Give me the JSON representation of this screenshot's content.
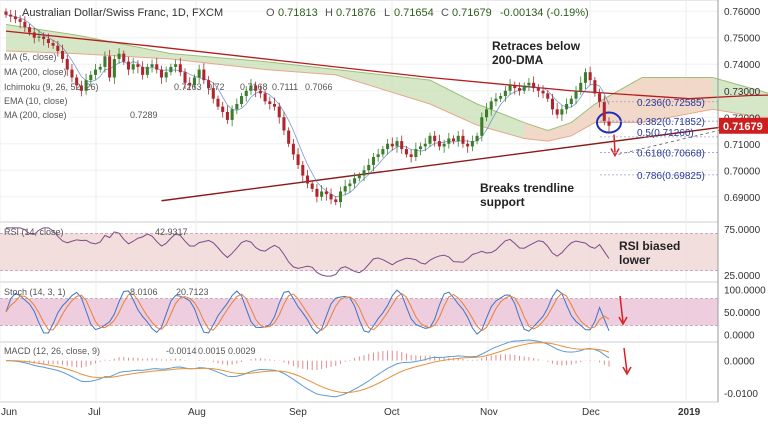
{
  "header": {
    "symbol": "Australian Dollar/Swiss Franc, 1D, FXCM",
    "ohlc": {
      "o_label": "O",
      "o": "0.71813",
      "h_label": "H",
      "h": "0.71876",
      "l_label": "L",
      "l": "0.71654",
      "c_label": "C",
      "c": "0.71679",
      "chg": "-0.00134 (-0.19%)"
    }
  },
  "colors": {
    "up": "#3a7d2c",
    "down": "#b0252b",
    "cloud_green": "#c8dfb4",
    "cloud_red": "#f7d5c8",
    "ma200": "#b71c1c",
    "trend": "#8b1a1a",
    "rsi_band": "#f2dada",
    "stoch_band": "#ecc8da",
    "rsi": "#7e4a8a",
    "stoch_k": "#3f74c4",
    "stoch_d": "#e8813a",
    "macd": "#5b9bd5",
    "signal": "#e8913a",
    "hist": "#e48b8b",
    "circle": "#1f2fb8",
    "arrow": "#d62222",
    "price_tag": "#cc1f1f"
  },
  "legends": {
    "ma5": "MA (5, close)",
    "ma200a": "MA (200, close)",
    "ichimoku": "Ichimoku (9, 26, 52, 26)",
    "ich_vals": [
      "0.7263",
      "0.72",
      "0.7168",
      "0.7111",
      "0.7066"
    ],
    "ema": "EMA (10, close)",
    "ma200b": "MA (200, close)",
    "ma200b_val": "0.7289",
    "rsi": "RSI (14, close)",
    "rsi_val": "42.9317",
    "stoch": "Stoch (14, 3, 1)",
    "stoch_k": "8.0106",
    "stoch_d": "20.7123",
    "macd": "MACD (12, 26, close, 9)",
    "macd_vals": [
      "-0.0014",
      "0.0015",
      "0.0029"
    ]
  },
  "annotations": {
    "retrace": [
      "Retraces below",
      "200-DMA"
    ],
    "breaks": [
      "Breaks trendline",
      "support"
    ],
    "rsi_bias": [
      "RSI biased",
      "lower"
    ]
  },
  "chart_data": {
    "type": "candlestick",
    "price_axis": {
      "ticks": [
        "0.76000",
        "0.75000",
        "0.74000",
        "0.73000",
        "0.72000",
        "0.71000",
        "0.70000",
        "0.69000"
      ],
      "ylim": [
        0.6835,
        0.7616
      ]
    },
    "current_price": "0.71679",
    "x_labels": [
      "Jun",
      "Jul",
      "Aug",
      "Sep",
      "Oct",
      "Nov",
      "Dec",
      "2019"
    ],
    "fib_levels": [
      {
        "label": "0.236(0.72585)",
        "value": 0.72585
      },
      {
        "label": "0.382(0.71852)",
        "value": 0.71852
      },
      {
        "label": "0.5(0.71260)",
        "value": 0.7126
      },
      {
        "label": "0.618(0.70668)",
        "value": 0.70668
      },
      {
        "label": "0.786(0.69825)",
        "value": 0.69825
      }
    ],
    "ma200": [
      [
        0,
        0.7525
      ],
      [
        30,
        0.747
      ],
      [
        60,
        0.741
      ],
      [
        90,
        0.735
      ],
      [
        120,
        0.73
      ],
      [
        145,
        0.727
      ],
      [
        158,
        0.7282
      ],
      [
        165,
        0.7285
      ],
      [
        170,
        0.7289
      ]
    ],
    "trendline": [
      [
        33,
        0.6885
      ],
      [
        155,
        0.717
      ]
    ],
    "trendline_ext": [
      [
        130,
        0.706
      ],
      [
        163,
        0.72
      ]
    ],
    "cloud_a": [
      [
        0,
        0.755
      ],
      [
        15,
        0.751
      ],
      [
        35,
        0.744
      ],
      [
        55,
        0.741
      ],
      [
        70,
        0.738
      ],
      [
        90,
        0.734
      ],
      [
        100,
        0.725
      ],
      [
        110,
        0.718
      ],
      [
        115,
        0.715
      ],
      [
        120,
        0.718
      ],
      [
        125,
        0.725
      ],
      [
        135,
        0.735
      ],
      [
        150,
        0.735
      ],
      [
        160,
        0.73
      ],
      [
        170,
        0.725
      ],
      [
        180,
        0.72
      ],
      [
        186,
        0.723
      ]
    ],
    "cloud_b": [
      [
        0,
        0.745
      ],
      [
        15,
        0.744
      ],
      [
        35,
        0.742
      ],
      [
        55,
        0.738
      ],
      [
        70,
        0.736
      ],
      [
        90,
        0.725
      ],
      [
        100,
        0.717
      ],
      [
        110,
        0.712
      ],
      [
        115,
        0.711
      ],
      [
        120,
        0.713
      ],
      [
        125,
        0.718
      ],
      [
        135,
        0.718
      ],
      [
        150,
        0.723
      ],
      [
        160,
        0.72
      ],
      [
        170,
        0.72
      ],
      [
        180,
        0.719
      ],
      [
        186,
        0.72
      ]
    ],
    "closes": [
      0.7587,
      0.758,
      0.757,
      0.756,
      0.754,
      0.752,
      0.75,
      0.7505,
      0.7495,
      0.748,
      0.747,
      0.745,
      0.742,
      0.738,
      0.735,
      0.732,
      0.73,
      0.734,
      0.736,
      0.738,
      0.739,
      0.743,
      0.735,
      0.742,
      0.744,
      0.741,
      0.738,
      0.74,
      0.739,
      0.736,
      0.739,
      0.74,
      0.738,
      0.735,
      0.737,
      0.739,
      0.74,
      0.737,
      0.733,
      0.732,
      0.735,
      0.738,
      0.734,
      0.731,
      0.727,
      0.724,
      0.722,
      0.719,
      0.723,
      0.725,
      0.728,
      0.73,
      0.732,
      0.73,
      0.729,
      0.726,
      0.725,
      0.724,
      0.72,
      0.715,
      0.71,
      0.706,
      0.702,
      0.698,
      0.695,
      0.693,
      0.69,
      0.692,
      0.691,
      0.689,
      0.688,
      0.692,
      0.694,
      0.695,
      0.697,
      0.698,
      0.7,
      0.702,
      0.705,
      0.706,
      0.708,
      0.71,
      0.709,
      0.711,
      0.708,
      0.706,
      0.705,
      0.708,
      0.709,
      0.71,
      0.713,
      0.711,
      0.709,
      0.71,
      0.712,
      0.711,
      0.713,
      0.71,
      0.709,
      0.711,
      0.713,
      0.72,
      0.723,
      0.726,
      0.727,
      0.728,
      0.73,
      0.732,
      0.731,
      0.73,
      0.732,
      0.733,
      0.731,
      0.73,
      0.729,
      0.727,
      0.723,
      0.721,
      0.723,
      0.725,
      0.727,
      0.73,
      0.733,
      0.737,
      0.734,
      0.729,
      0.7258,
      0.7185,
      0.7168
    ],
    "rsi": {
      "ticks": [
        "75.0000",
        "25.0000"
      ],
      "ylim": [
        22,
        78
      ]
    },
    "stoch": {
      "ticks": [
        "100.0000",
        "50.0000",
        "0.0000"
      ],
      "ylim": [
        -8,
        108
      ]
    },
    "macd": {
      "ticks": [
        "0.0000",
        "-0.0100"
      ],
      "ylim": [
        -0.0115,
        0.0045
      ]
    }
  }
}
